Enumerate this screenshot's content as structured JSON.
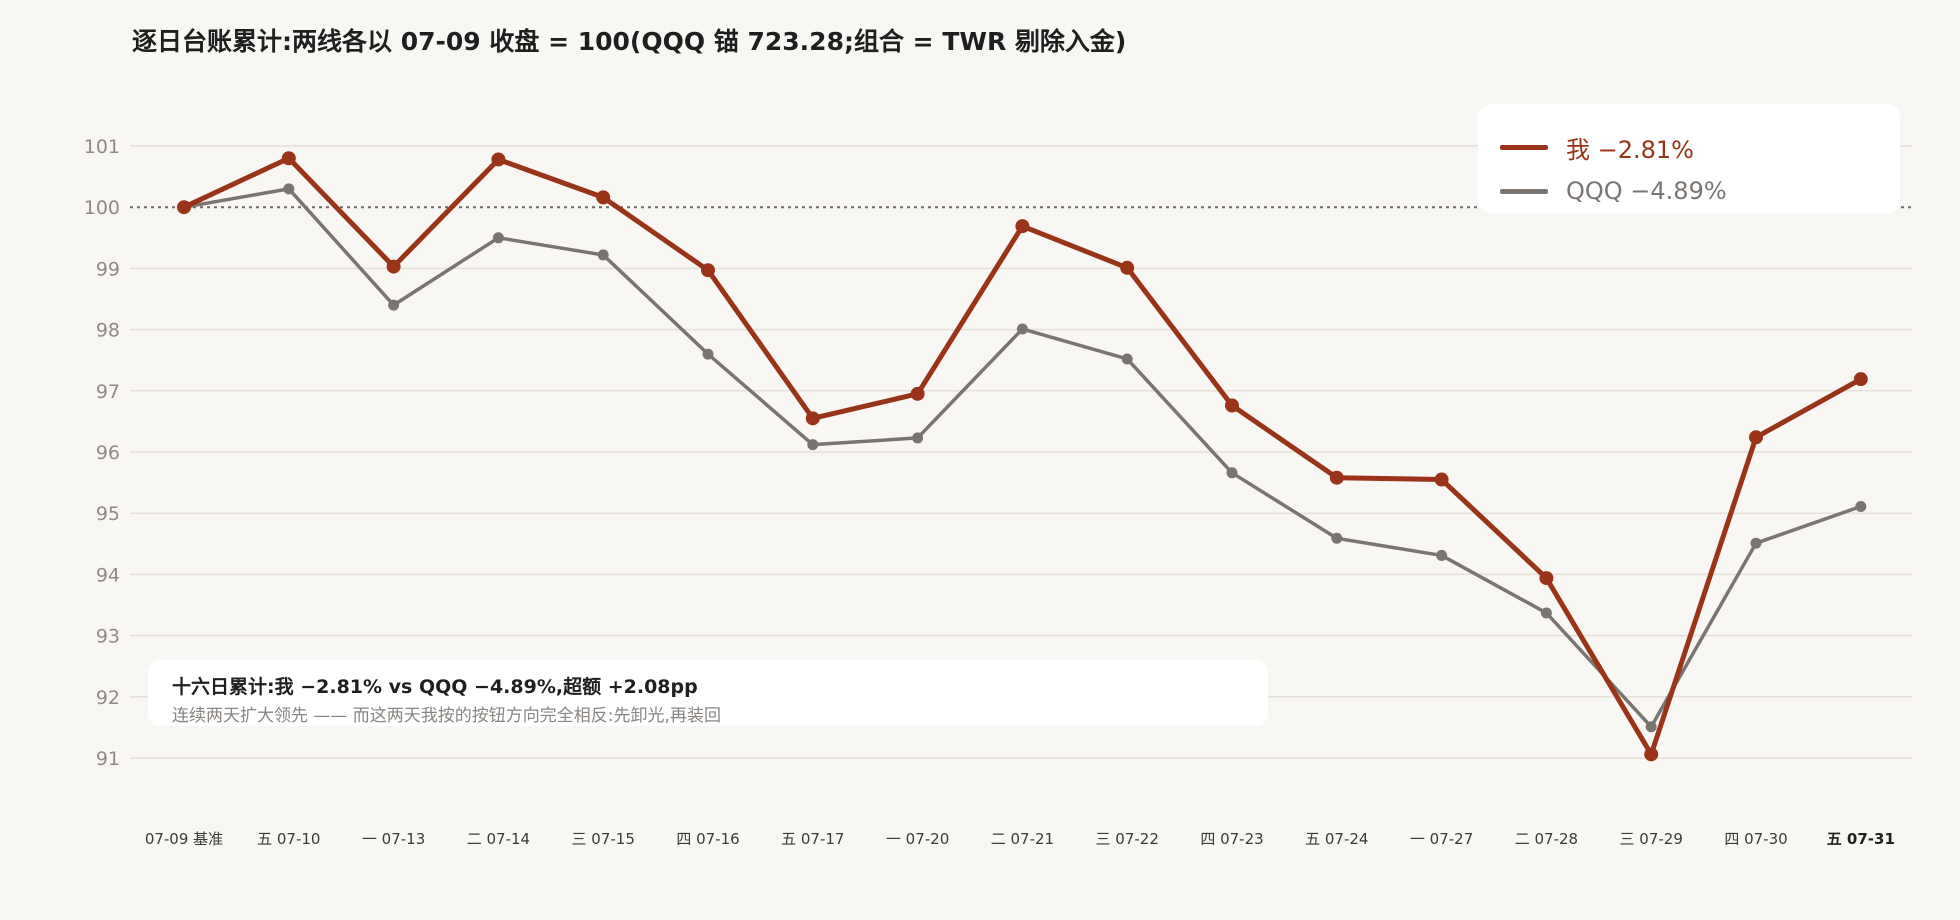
{
  "title": "逐日台账累计:两线各以 07-09 收盘 = 100(QQQ 锚 723.28;组合 = TWR 剔除入金)",
  "legend": {
    "me": "我 −2.81%",
    "qqq": "QQQ −4.89%"
  },
  "annotation": {
    "headline": "十六日累计:我 −2.81% vs QQQ −4.89%,超额 +2.08pp",
    "subline": "连续两天扩大领先 —— 而这两天我按的按钮方向完全相反:先卸光,再装回"
  },
  "colors": {
    "me": "#9a3418",
    "qqq": "#7b7571",
    "grid": "#e6e1d8",
    "baseline": "#6e6a66",
    "tick": "#8f8a85",
    "xtick": "#3a3a3a"
  },
  "chart_data": {
    "type": "line",
    "categories": [
      "07-09 基准",
      "五 07-10",
      "一 07-13",
      "二 07-14",
      "三 07-15",
      "四 07-16",
      "五 07-17",
      "一 07-20",
      "二 07-21",
      "三 07-22",
      "四 07-23",
      "五 07-24",
      "一 07-27",
      "二 07-28",
      "三 07-29",
      "四 07-30",
      "五 07-31"
    ],
    "highlight_category": "五 07-31",
    "series": [
      {
        "key": "me",
        "values": [
          100,
          100.8,
          99.03,
          100.78,
          100.16,
          98.97,
          96.55,
          96.95,
          99.69,
          99.01,
          96.76,
          95.58,
          95.55,
          93.94,
          91.06,
          96.24,
          97.19
        ]
      },
      {
        "key": "qqq",
        "values": [
          100,
          100.3,
          98.4,
          99.5,
          99.22,
          97.6,
          96.12,
          96.23,
          98.01,
          97.52,
          95.66,
          94.59,
          94.31,
          93.37,
          91.51,
          94.51,
          95.11
        ]
      }
    ],
    "yticks": [
      91,
      92,
      93,
      94,
      95,
      96,
      97,
      98,
      99,
      100,
      101
    ],
    "baseline": 100,
    "ylim": [
      91,
      101
    ],
    "grid": true,
    "legend_position": "top-right"
  }
}
